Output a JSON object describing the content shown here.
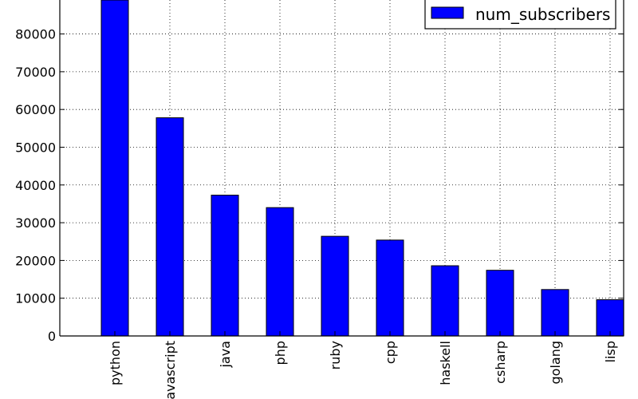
{
  "chart_data": {
    "type": "bar",
    "categories": [
      "python",
      "javascript",
      "java",
      "php",
      "ruby",
      "cpp",
      "haskell",
      "csharp",
      "golang",
      "lisp"
    ],
    "series": [
      {
        "name": "num_subscribers",
        "values": [
          89000,
          57800,
          37300,
          34000,
          26400,
          25400,
          18600,
          17400,
          12300,
          9600
        ],
        "color": "#0000ff"
      }
    ],
    "ylim": [
      0,
      89000
    ],
    "yticks": [
      0,
      10000,
      20000,
      30000,
      40000,
      50000,
      60000,
      70000,
      80000
    ],
    "grid": true,
    "legend_position": "top-right",
    "edge_color": "#000000"
  }
}
